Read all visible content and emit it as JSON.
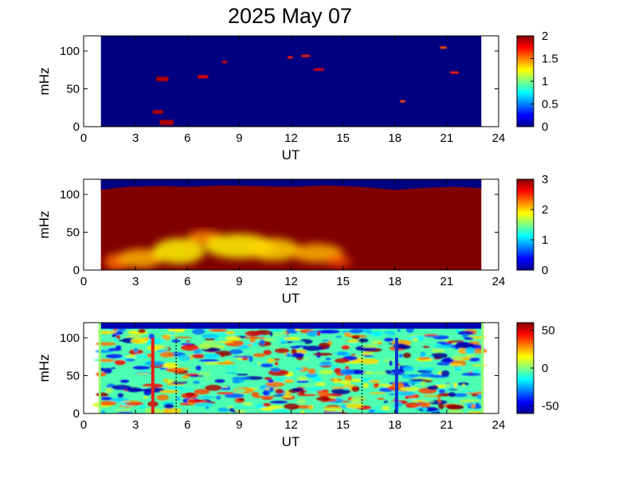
{
  "title": "2025 May 07",
  "chart_data": [
    {
      "type": "heatmap",
      "xlabel": "UT",
      "ylabel": "mHz",
      "xlim": [
        0,
        24
      ],
      "ylim": [
        0,
        120
      ],
      "xticks": [
        "0",
        "3",
        "6",
        "9",
        "12",
        "15",
        "18",
        "21",
        "24"
      ],
      "yticks": [
        "0",
        "50",
        "100"
      ],
      "data_range_ut": [
        1.0,
        23.0
      ],
      "colorbar": {
        "min": 0,
        "max": 2,
        "ticks": [
          "0",
          "0.5",
          "1",
          "1.5",
          "2"
        ]
      },
      "background_level": 0.0,
      "features": [
        {
          "ut": [
            4.2,
            4.9
          ],
          "mhz": [
            60,
            66
          ],
          "level": 1.9
        },
        {
          "ut": [
            4.0,
            4.6
          ],
          "mhz": [
            17,
            22
          ],
          "level": 1.9
        },
        {
          "ut": [
            4.4,
            5.2
          ],
          "mhz": [
            2,
            9
          ],
          "level": 1.9
        },
        {
          "ut": [
            6.6,
            7.2
          ],
          "mhz": [
            64,
            68
          ],
          "level": 1.8
        },
        {
          "ut": [
            8.0,
            8.3
          ],
          "mhz": [
            84,
            87
          ],
          "level": 1.8
        },
        {
          "ut": [
            11.8,
            12.1
          ],
          "mhz": [
            90,
            93
          ],
          "level": 1.7
        },
        {
          "ut": [
            12.6,
            13.1
          ],
          "mhz": [
            92,
            95
          ],
          "level": 1.7
        },
        {
          "ut": [
            13.3,
            13.9
          ],
          "mhz": [
            74,
            77
          ],
          "level": 1.8
        },
        {
          "ut": [
            18.3,
            18.6
          ],
          "mhz": [
            32,
            35
          ],
          "level": 1.6
        },
        {
          "ut": [
            20.6,
            21.0
          ],
          "mhz": [
            103,
            106
          ],
          "level": 1.6
        },
        {
          "ut": [
            21.2,
            21.7
          ],
          "mhz": [
            70,
            73
          ],
          "level": 1.7
        }
      ]
    },
    {
      "type": "heatmap",
      "xlabel": "UT",
      "ylabel": "mHz",
      "xlim": [
        0,
        24
      ],
      "ylim": [
        0,
        120
      ],
      "xticks": [
        "0",
        "3",
        "6",
        "9",
        "12",
        "15",
        "18",
        "21",
        "24"
      ],
      "yticks": [
        "0",
        "50",
        "100"
      ],
      "data_range_ut": [
        1.0,
        23.0
      ],
      "colorbar": {
        "min": 0,
        "max": 3,
        "ticks": [
          "0",
          "1",
          "2",
          "3"
        ]
      },
      "background_level": 3.0,
      "upper_boundary_mhz": [
        [
          1.0,
          106
        ],
        [
          2.5,
          110
        ],
        [
          4.5,
          111
        ],
        [
          6.0,
          110
        ],
        [
          8.0,
          112
        ],
        [
          10.0,
          111
        ],
        [
          12.0,
          110
        ],
        [
          14.0,
          112
        ],
        [
          16.0,
          110
        ],
        [
          18.0,
          106
        ],
        [
          20.0,
          109
        ],
        [
          21.5,
          110
        ],
        [
          23.0,
          108
        ]
      ],
      "features": [
        {
          "ut": [
            1.2,
            2.6
          ],
          "mhz": [
            0,
            22
          ],
          "level": 2.3
        },
        {
          "ut": [
            2.0,
            4.6
          ],
          "mhz": [
            3,
            28
          ],
          "level": 2.1
        },
        {
          "ut": [
            4.0,
            7.0
          ],
          "mhz": [
            8,
            42
          ],
          "level": 1.9
        },
        {
          "ut": [
            6.0,
            8.0
          ],
          "mhz": [
            35,
            52
          ],
          "level": 2.2
        },
        {
          "ut": [
            7.0,
            11.0
          ],
          "mhz": [
            15,
            48
          ],
          "level": 1.9
        },
        {
          "ut": [
            9.5,
            12.5
          ],
          "mhz": [
            12,
            42
          ],
          "level": 2.0
        },
        {
          "ut": [
            12.0,
            15.0
          ],
          "mhz": [
            10,
            35
          ],
          "level": 2.1
        },
        {
          "ut": [
            14.0,
            15.5
          ],
          "mhz": [
            5,
            18
          ],
          "level": 2.4
        }
      ]
    },
    {
      "type": "heatmap",
      "xlabel": "UT",
      "ylabel": "mHz",
      "xlim": [
        0,
        24
      ],
      "ylim": [
        0,
        120
      ],
      "xticks": [
        "0",
        "3",
        "6",
        "9",
        "12",
        "15",
        "18",
        "21",
        "24"
      ],
      "yticks": [
        "0",
        "50",
        "100"
      ],
      "data_range_ut": [
        1.0,
        23.0
      ],
      "colorbar": {
        "min": -60,
        "max": 60,
        "ticks": [
          "-50",
          "0",
          "50"
        ]
      },
      "vertical_markers": [
        {
          "ut": 4.0,
          "style": "solid",
          "color": "#e0201b",
          "mhz": [
            0,
            100
          ]
        },
        {
          "ut": 5.35,
          "style": "dotted",
          "color": "#000000",
          "mhz": [
            0,
            100
          ]
        },
        {
          "ut": 16.1,
          "style": "dotted",
          "color": "#000000",
          "mhz": [
            0,
            100
          ]
        },
        {
          "ut": 18.1,
          "style": "solid",
          "color": "#1030d0",
          "mhz": [
            0,
            100
          ]
        }
      ]
    }
  ]
}
